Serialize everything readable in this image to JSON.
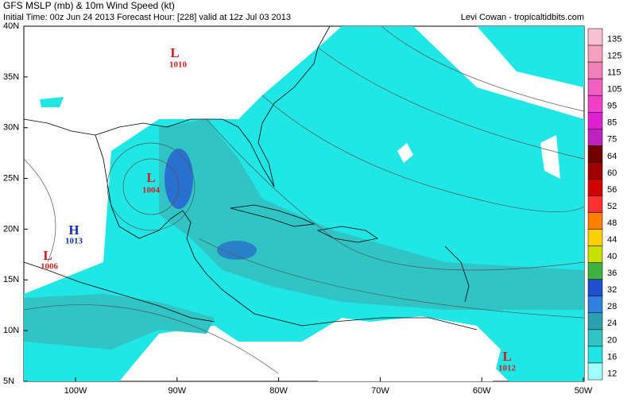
{
  "header": {
    "title": "GFS MSLP (mb) & 10m Wind Speed (kt)",
    "subtitle": "Initial Time: 00z Jun 24 2013 Forecast Hour: [228] valid at 12z Jul 03 2013",
    "credit": "Levi Cowan - tropicaltidbits.com"
  },
  "map": {
    "lat_labels": [
      "40N",
      "35N",
      "30N",
      "25N",
      "20N",
      "15N",
      "10N",
      "5N"
    ],
    "lon_labels": [
      "100W",
      "90W",
      "80W",
      "70W",
      "60W",
      "50W"
    ],
    "pressure_centers": [
      {
        "symbol": "L",
        "value": "1010"
      },
      {
        "symbol": "L",
        "value": "1004"
      },
      {
        "symbol": "H",
        "value": "1013"
      },
      {
        "symbol": "L",
        "value": "1006"
      },
      {
        "symbol": "L",
        "value": "1012"
      }
    ]
  },
  "colorbar": {
    "labels": [
      135,
      125,
      115,
      105,
      95,
      85,
      75,
      64,
      60,
      56,
      52,
      48,
      44,
      40,
      36,
      32,
      28,
      24,
      20,
      16,
      12
    ],
    "colors": [
      "#f8c0d0",
      "#f6a0c0",
      "#f080b8",
      "#f060c0",
      "#f040c8",
      "#e020d0",
      "#c020c0",
      "#700000",
      "#a00000",
      "#d00000",
      "#ff3030",
      "#ff8000",
      "#ffd000",
      "#c8e000",
      "#40b040",
      "#2050d0",
      "#3080e0",
      "#2aa0b0",
      "#30c4c4",
      "#20e6e6",
      "#a0ffff"
    ]
  }
}
